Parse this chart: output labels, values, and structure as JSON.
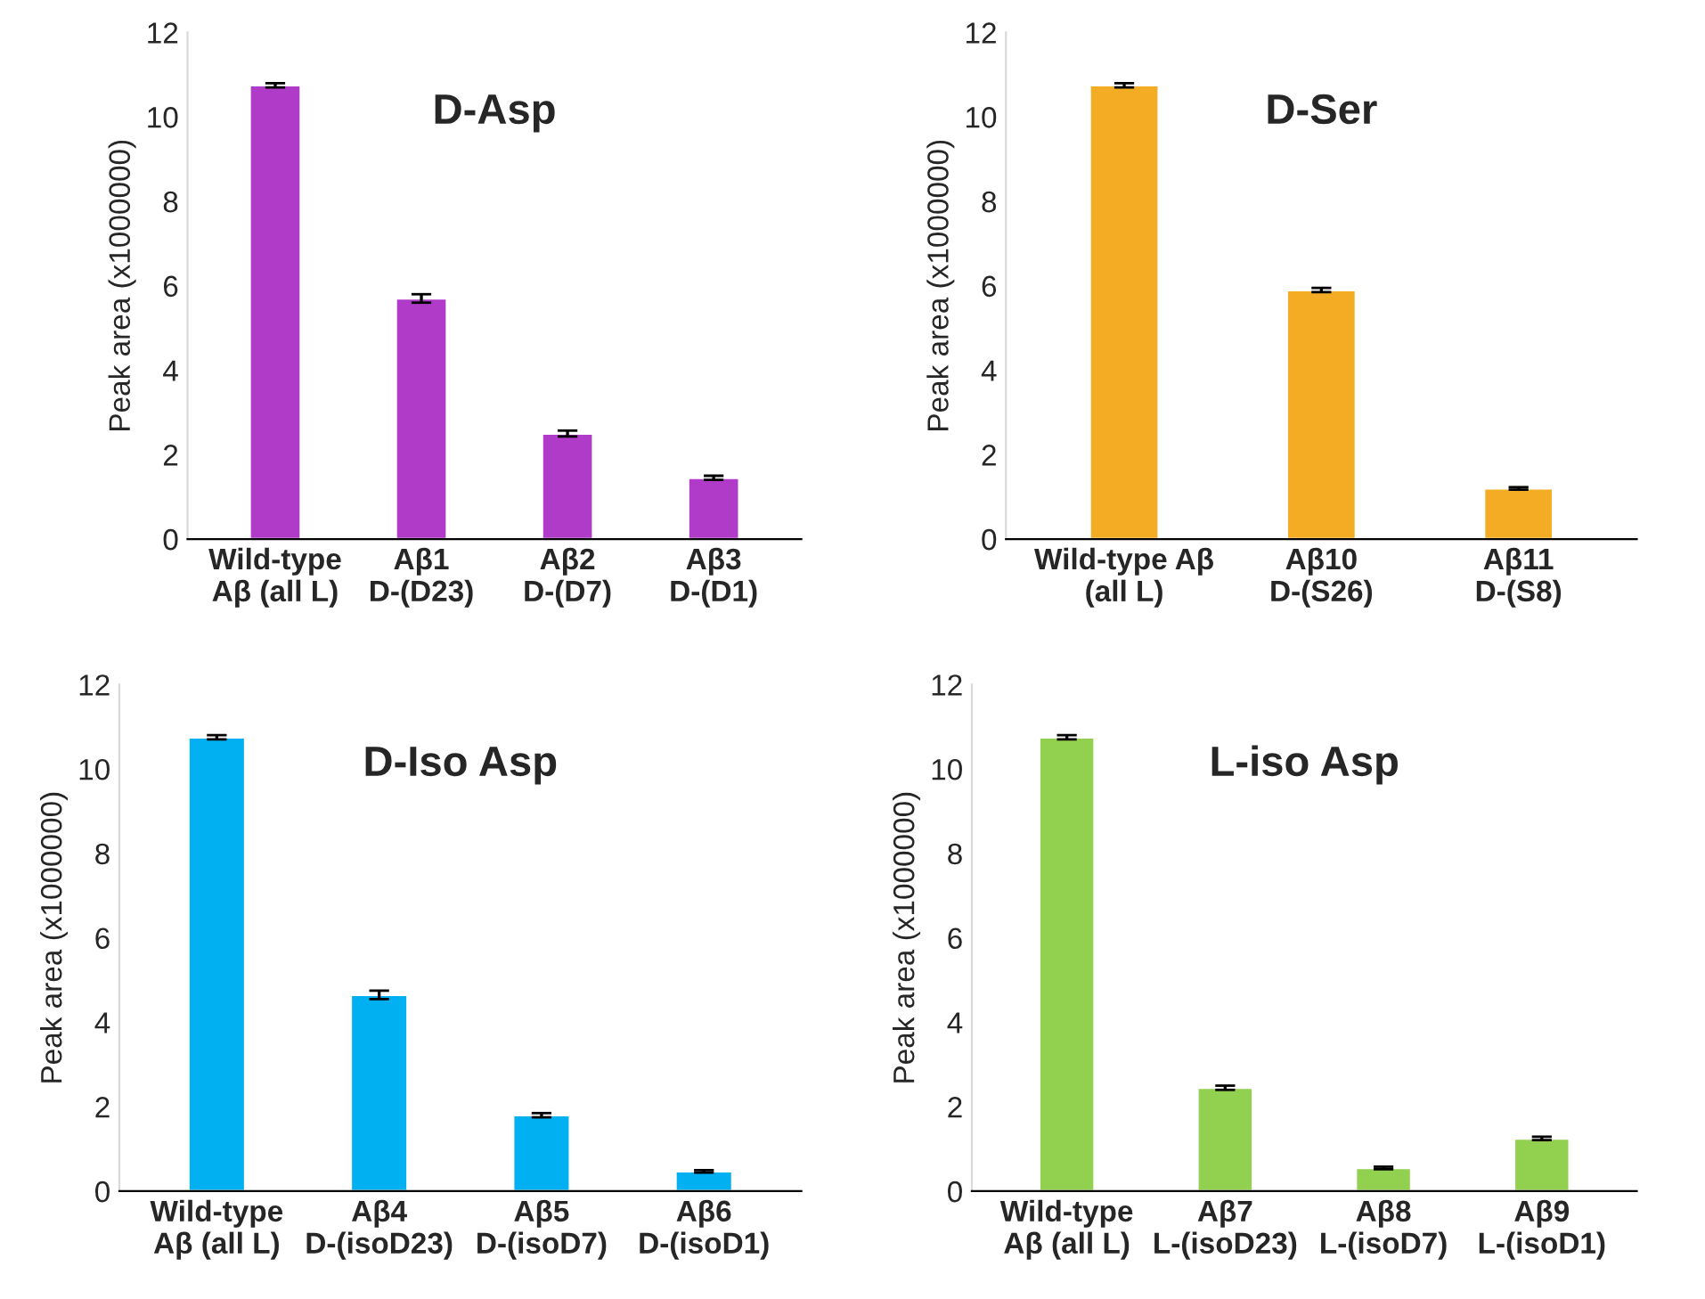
{
  "chart_data": [
    {
      "type": "bar",
      "title": "D-Asp",
      "ylabel": "Peak area (x1000000)",
      "categories": [
        "Wild-type\nAβ (all L)",
        "Aβ1\nD-(D23)",
        "Aβ2\nD-(D7)",
        "Aβ3\nD-(D1)"
      ],
      "values": [
        10.75,
        5.7,
        2.5,
        1.45
      ],
      "errors": [
        0.05,
        0.1,
        0.07,
        0.05
      ],
      "color": "#b03bc8",
      "ylim": [
        0,
        12
      ],
      "yticks": [
        0,
        2,
        4,
        6,
        8,
        10,
        12
      ],
      "grid": false,
      "legend": false
    },
    {
      "type": "bar",
      "title": "D-Ser",
      "ylabel": "Peak area (x1000000)",
      "categories": [
        "Wild-type Aβ\n(all L)",
        "Aβ10\nD-(S26)",
        "Aβ11\nD-(S8)"
      ],
      "values": [
        10.75,
        5.9,
        1.2
      ],
      "errors": [
        0.05,
        0.05,
        0.03
      ],
      "color": "#f5ac25",
      "ylim": [
        0,
        12
      ],
      "yticks": [
        0,
        2,
        4,
        6,
        8,
        10,
        12
      ],
      "grid": false,
      "legend": false
    },
    {
      "type": "bar",
      "title": "D-Iso Asp",
      "ylabel": "Peak area (x1000000)",
      "categories": [
        "Wild-type\nAβ (all L)",
        "Aβ4\nD-(isoD23)",
        "Aβ5\nD-(isoD7)",
        "Aβ6\nD-(isoD1)"
      ],
      "values": [
        10.75,
        4.65,
        1.8,
        0.47
      ],
      "errors": [
        0.05,
        0.1,
        0.05,
        0.03
      ],
      "color": "#00b0f0",
      "ylim": [
        0,
        12
      ],
      "yticks": [
        0,
        2,
        4,
        6,
        8,
        10,
        12
      ],
      "grid": false,
      "legend": false
    },
    {
      "type": "bar",
      "title": "L-iso Asp",
      "ylabel": "Peak area (x1000000)",
      "categories": [
        "Wild-type\nAβ (all L)",
        "Aβ7\nL-(isoD23)",
        "Aβ8\nL-(isoD7)",
        "Aβ9\nL-(isoD1)"
      ],
      "values": [
        10.75,
        2.45,
        0.55,
        1.25
      ],
      "errors": [
        0.05,
        0.05,
        0.03,
        0.04
      ],
      "color": "#92d050",
      "ylim": [
        0,
        12
      ],
      "yticks": [
        0,
        2,
        4,
        6,
        8,
        10,
        12
      ],
      "grid": false,
      "legend": false
    }
  ]
}
